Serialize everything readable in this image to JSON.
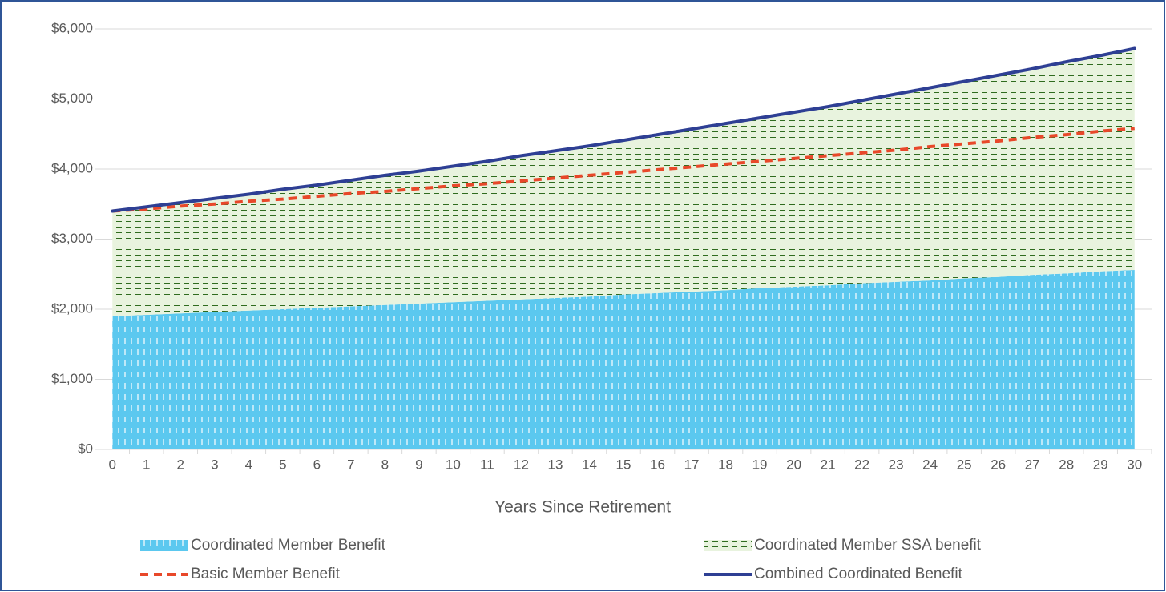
{
  "chart_data": {
    "type": "stacked-area-line",
    "x_label": "Years Since Retirement",
    "categories": [
      "0",
      "1",
      "2",
      "3",
      "4",
      "5",
      "6",
      "7",
      "8",
      "9",
      "10",
      "11",
      "12",
      "13",
      "14",
      "15",
      "16",
      "17",
      "18",
      "19",
      "20",
      "21",
      "22",
      "23",
      "24",
      "25",
      "26",
      "27",
      "28",
      "29",
      "30"
    ],
    "ylim": [
      0,
      6000
    ],
    "yticks": [
      {
        "value": 0,
        "label": "$0"
      },
      {
        "value": 1000,
        "label": "$1,000"
      },
      {
        "value": 2000,
        "label": "$2,000"
      },
      {
        "value": 3000,
        "label": "$3,000"
      },
      {
        "value": 4000,
        "label": "$4,000"
      },
      {
        "value": 5000,
        "label": "$5,000"
      },
      {
        "value": 6000,
        "label": "$6,000"
      }
    ],
    "grid": true,
    "legend": "bottom",
    "series": [
      {
        "name": "Coordinated Member Benefit",
        "kind": "area",
        "pattern": "vertical-dashes",
        "color": "#5bc8ef",
        "values": [
          1900,
          1920,
          1940,
          1960,
          1980,
          2000,
          2020,
          2040,
          2060,
          2080,
          2100,
          2120,
          2140,
          2160,
          2180,
          2210,
          2230,
          2250,
          2270,
          2300,
          2320,
          2340,
          2370,
          2390,
          2410,
          2440,
          2460,
          2490,
          2510,
          2540,
          2560
        ]
      },
      {
        "name": "Coordinated Member SSA benefit",
        "kind": "area",
        "pattern": "horizontal-dashes",
        "color": "#e8f3de",
        "values": [
          1500,
          1540,
          1580,
          1620,
          1660,
          1710,
          1750,
          1800,
          1850,
          1890,
          1940,
          1990,
          2050,
          2100,
          2150,
          2200,
          2260,
          2320,
          2380,
          2430,
          2490,
          2550,
          2610,
          2680,
          2750,
          2810,
          2880,
          2940,
          3020,
          3080,
          3160
        ]
      },
      {
        "name": "Basic Member Benefit",
        "kind": "line",
        "dashed": true,
        "color": "#e8482a",
        "values": [
          3400,
          3430,
          3470,
          3500,
          3540,
          3570,
          3610,
          3650,
          3680,
          3720,
          3760,
          3790,
          3830,
          3870,
          3910,
          3950,
          3990,
          4030,
          4070,
          4110,
          4150,
          4190,
          4230,
          4270,
          4320,
          4360,
          4400,
          4450,
          4490,
          4540,
          4580
        ]
      },
      {
        "name": "Combined Coordinated Benefit",
        "kind": "line",
        "dashed": false,
        "color": "#2e3f94",
        "values": [
          3400,
          3460,
          3520,
          3580,
          3640,
          3710,
          3770,
          3840,
          3910,
          3970,
          4040,
          4110,
          4190,
          4260,
          4330,
          4410,
          4490,
          4570,
          4650,
          4730,
          4810,
          4890,
          4980,
          5070,
          5160,
          5250,
          5340,
          5430,
          5530,
          5620,
          5720
        ]
      }
    ]
  }
}
